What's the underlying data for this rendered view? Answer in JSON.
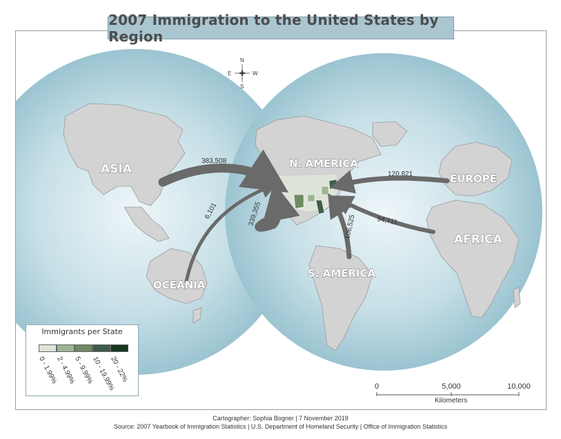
{
  "title": "2007 Immigration to the United States by Region",
  "regions": [
    {
      "name": "ASIA",
      "value": "383,508"
    },
    {
      "name": "OCEANIA",
      "value": "6,101"
    },
    {
      "name": "N. AMERICA",
      "value": "339,355"
    },
    {
      "name": "S. AMERICA",
      "value": "106,525"
    },
    {
      "name": "EUROPE",
      "value": "120,821"
    },
    {
      "name": "AFRICA",
      "value": "94,711"
    }
  ],
  "compass": {
    "n": "N",
    "s": "S",
    "e": "E",
    "w": "W"
  },
  "legend": {
    "title": "Immigrants per State",
    "classes": [
      {
        "label": "0 - 1.99%",
        "color": "#dde3d8"
      },
      {
        "label": "2 - 4.99%",
        "color": "#9db592"
      },
      {
        "label": "5 - 9.99%",
        "color": "#6e8a60"
      },
      {
        "label": "10 - 19.99%",
        "color": "#3e5d49"
      },
      {
        "label": "20 - 22%",
        "color": "#15371f"
      }
    ]
  },
  "scale": {
    "ticks": [
      "0",
      "5,000",
      "10,000"
    ],
    "unit": "Kilometers"
  },
  "credits": {
    "cartographer": "Cartographer: Sophia Bogner |  7 November 2019",
    "source": "Source: 2007 Yearbook of Immigration Statistics | U.S. Department of Homeland Security | Office of Immigration Statistics"
  },
  "colors": {
    "ocean": "#a9ccd8",
    "land": "#d6d6d6",
    "arrow": "#6a6a6a"
  }
}
